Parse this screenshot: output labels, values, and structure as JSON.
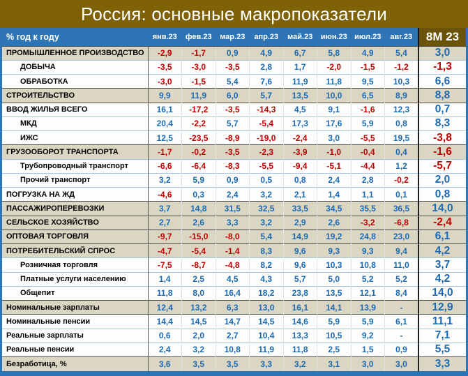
{
  "title": "Россия: основные макропоказатели",
  "colors": {
    "title_bg": "#7e6205",
    "header_bg": "#2e75b6",
    "summary_header_bg": "#6b5309",
    "category_row_bg": "#dbd6c2",
    "positive_value": "#1a69b4",
    "negative_value": "#c00000",
    "frame_border": "#2e75b6"
  },
  "chart_data": {
    "type": "table",
    "title": "Россия: основные макропоказатели",
    "corner_label": "% год к году",
    "columns": [
      "янв.23",
      "фев.23",
      "мар.23",
      "апр.23",
      "май.23",
      "июн.23",
      "июл.23",
      "авг.23"
    ],
    "summary_column": "8M 23",
    "rows": [
      {
        "label": "ПРОМЫШЛЕННОЕ ПРОИЗВОДСТВО",
        "indent": false,
        "category": true,
        "sep": false,
        "values": [
          "-2,9",
          "-1,7",
          "0,9",
          "4,9",
          "6,7",
          "5,8",
          "4,9",
          "5,4"
        ],
        "summary": "3,0"
      },
      {
        "label": "ДОБЫЧА",
        "indent": true,
        "category": false,
        "sep": false,
        "values": [
          "-3,5",
          "-3,0",
          "-3,5",
          "2,8",
          "1,7",
          "-2,0",
          "-1,5",
          "-1,2"
        ],
        "summary": "-1,3"
      },
      {
        "label": "ОБРАБОТКА",
        "indent": true,
        "category": false,
        "sep": false,
        "values": [
          "-3,0",
          "-1,5",
          "5,4",
          "7,6",
          "11,9",
          "11,8",
          "9,5",
          "10,3"
        ],
        "summary": "6,6"
      },
      {
        "label": "СТРОИТЕЛЬСТВО",
        "indent": false,
        "category": true,
        "sep": true,
        "values": [
          "9,9",
          "11,9",
          "6,0",
          "5,7",
          "13,5",
          "10,0",
          "6,5",
          "8,9"
        ],
        "summary": "8,8"
      },
      {
        "label": "ВВОД ЖИЛЬЯ ВСЕГО",
        "indent": false,
        "category": false,
        "sep": true,
        "values": [
          "16,1",
          "-17,2",
          "-3,5",
          "-14,3",
          "4,5",
          "9,1",
          "-1,6",
          "12,3"
        ],
        "summary": "0,7"
      },
      {
        "label": "МКД",
        "indent": true,
        "category": false,
        "sep": false,
        "values": [
          "20,4",
          "-2,2",
          "5,7",
          "-5,4",
          "17,3",
          "17,6",
          "5,9",
          "0,8"
        ],
        "summary": "8,3"
      },
      {
        "label": "ИЖС",
        "indent": true,
        "category": false,
        "sep": false,
        "values": [
          "12,5",
          "-23,5",
          "-8,9",
          "-19,0",
          "-2,4",
          "3,0",
          "-5,5",
          "19,5"
        ],
        "summary": "-3,8"
      },
      {
        "label": "ГРУЗООБОРОТ ТРАНСПОРТА",
        "indent": false,
        "category": true,
        "sep": true,
        "values": [
          "-1,7",
          "-0,2",
          "-3,5",
          "-2,3",
          "-3,9",
          "-1,0",
          "-0,4",
          "0,4"
        ],
        "summary": "-1,6"
      },
      {
        "label": "Трубопроводный транспорт",
        "indent": true,
        "category": false,
        "sep": false,
        "values": [
          "-6,6",
          "-6,4",
          "-8,3",
          "-5,5",
          "-9,4",
          "-5,1",
          "-4,4",
          "1,2"
        ],
        "summary": "-5,7"
      },
      {
        "label": "Прочий транспорт",
        "indent": true,
        "category": false,
        "sep": false,
        "values": [
          "3,2",
          "5,9",
          "0,9",
          "0,5",
          "0,8",
          "2,4",
          "2,8",
          "-0,2"
        ],
        "summary": "2,0"
      },
      {
        "label": "ПОГРУЗКА НА ЖД",
        "indent": false,
        "category": false,
        "sep": false,
        "values": [
          "-4,6",
          "0,3",
          "2,4",
          "3,2",
          "2,1",
          "1,4",
          "1,1",
          "0,1"
        ],
        "summary": "0,8"
      },
      {
        "label": "ПАССАЖИРОПЕРЕВОЗКИ",
        "indent": false,
        "category": true,
        "sep": true,
        "values": [
          "3,7",
          "14,8",
          "31,5",
          "32,5",
          "33,5",
          "34,5",
          "35,5",
          "36,5"
        ],
        "summary": "14,0"
      },
      {
        "label": "СЕЛЬСКОЕ ХОЗЯЙСТВО",
        "indent": false,
        "category": true,
        "sep": true,
        "values": [
          "2,7",
          "2,6",
          "3,3",
          "3,2",
          "2,9",
          "2,6",
          "-3,2",
          "-6,8"
        ],
        "summary": "-2,4"
      },
      {
        "label": "ОПТОВАЯ ТОРГОВЛЯ",
        "indent": false,
        "category": true,
        "sep": true,
        "values": [
          "-9,7",
          "-15,0",
          "-8,0",
          "5,4",
          "14,9",
          "19,2",
          "24,8",
          "23,0"
        ],
        "summary": "6,1"
      },
      {
        "label": "ПОТРЕБИТЕЛЬСКИЙ СПРОС",
        "indent": false,
        "category": true,
        "sep": true,
        "values": [
          "-4,7",
          "-5,4",
          "-1,4",
          "8,3",
          "9,6",
          "9,3",
          "9,3",
          "9,4"
        ],
        "summary": "4,2"
      },
      {
        "label": "Розничная торговля",
        "indent": true,
        "category": false,
        "sep": false,
        "values": [
          "-7,5",
          "-8,7",
          "-4,8",
          "8,2",
          "9,6",
          "10,3",
          "10,8",
          "11,0"
        ],
        "summary": "3,7"
      },
      {
        "label": "Платные услуги населению",
        "indent": true,
        "category": false,
        "sep": false,
        "values": [
          "1,4",
          "2,5",
          "4,5",
          "4,3",
          "5,7",
          "5,0",
          "5,2",
          "5,2"
        ],
        "summary": "4,2"
      },
      {
        "label": "Общепит",
        "indent": true,
        "category": false,
        "sep": false,
        "values": [
          "11,8",
          "8,0",
          "16,4",
          "18,2",
          "23,8",
          "13,5",
          "12,1",
          "8,4"
        ],
        "summary": "14,0"
      },
      {
        "label": "Номинальные зарплаты",
        "indent": false,
        "category": true,
        "sep": true,
        "values": [
          "12,4",
          "13,2",
          "6,3",
          "13,0",
          "16,1",
          "14,1",
          "13,9",
          "-"
        ],
        "summary": "12,9"
      },
      {
        "label": "Номинальные пенсии",
        "indent": false,
        "category": false,
        "sep": true,
        "values": [
          "14,4",
          "14,5",
          "14,7",
          "14,5",
          "14,6",
          "5,9",
          "5,9",
          "6,1"
        ],
        "summary": "11,1"
      },
      {
        "label": "Реальные зарплаты",
        "indent": false,
        "category": false,
        "sep": false,
        "values": [
          "0,6",
          "2,0",
          "2,7",
          "10,4",
          "13,3",
          "10,5",
          "9,2",
          "-"
        ],
        "summary": "7,1"
      },
      {
        "label": "Реальные пенсии",
        "indent": false,
        "category": false,
        "sep": false,
        "values": [
          "2,4",
          "3,2",
          "10,8",
          "11,9",
          "11,8",
          "2,5",
          "1,5",
          "0,9"
        ],
        "summary": "5,5"
      },
      {
        "label": "Безработица, %",
        "indent": false,
        "category": true,
        "sep": true,
        "values": [
          "3,6",
          "3,5",
          "3,5",
          "3,3",
          "3,2",
          "3,1",
          "3,0",
          "3,0"
        ],
        "summary": "3,3"
      }
    ]
  }
}
